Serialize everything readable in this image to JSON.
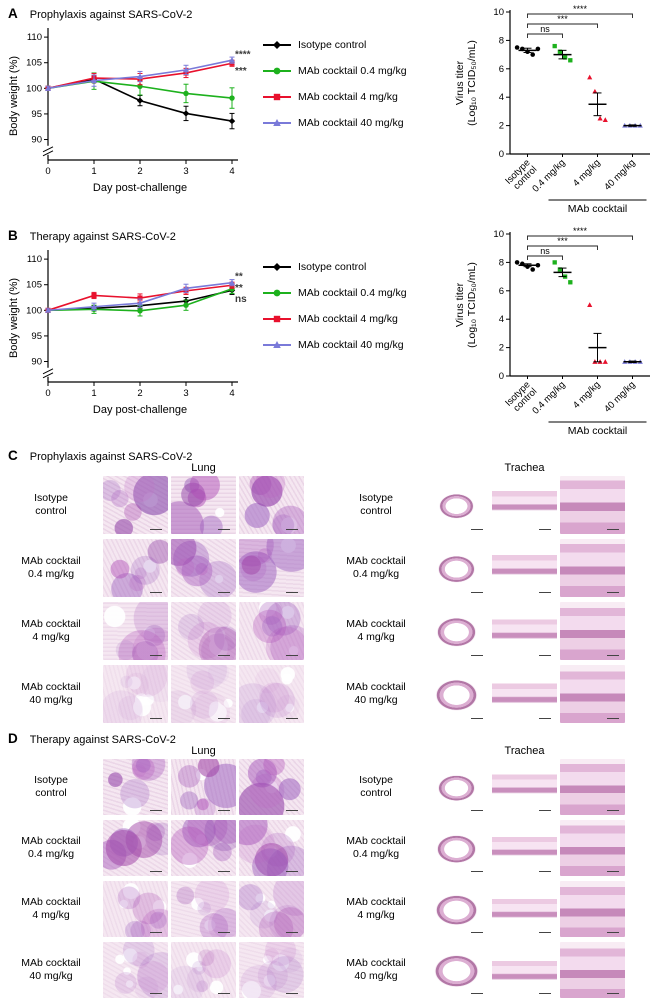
{
  "panels": {
    "A": {
      "label": "A",
      "title": "Prophylaxis against SARS-CoV-2"
    },
    "B": {
      "label": "B",
      "title": "Therapy against SARS-CoV-2"
    },
    "C": {
      "label": "C",
      "title": "Prophylaxis against SARS-CoV-2",
      "organs": [
        "Lung",
        "Trachea"
      ],
      "row_labels": [
        "Isotype\ncontrol",
        "MAb cocktail\n0.4 mg/kg",
        "MAb cocktail\n4 mg/kg",
        "MAb cocktail\n40 mg/kg"
      ]
    },
    "D": {
      "label": "D",
      "title": "Therapy against SARS-CoV-2",
      "organs": [
        "Lung",
        "Trachea"
      ],
      "row_labels": [
        "Isotype\ncontrol",
        "MAb cocktail\n0.4 mg/kg",
        "MAb cocktail\n4 mg/kg",
        "MAb cocktail\n40 mg/kg"
      ]
    }
  },
  "chart_data": [
    {
      "id": "line-A",
      "panel": "A",
      "type": "line",
      "title": "Prophylaxis against SARS-CoV-2",
      "xlabel": "Day post-challenge",
      "ylabel": "Body weight (%)",
      "x": [
        0,
        1,
        2,
        3,
        4
      ],
      "xticks": [
        0,
        1,
        2,
        3,
        4
      ],
      "ylim": [
        86,
        111
      ],
      "yticks": [
        90,
        95,
        100,
        105,
        110
      ],
      "series": [
        {
          "name": "Isotype control",
          "color": "#000000",
          "marker": "diamond",
          "values": [
            100,
            101.8,
            97.6,
            95.1,
            93.6
          ],
          "err": [
            0.4,
            0.6,
            1.0,
            1.4,
            1.5
          ]
        },
        {
          "name": "MAb cocktail 0.4 mg/kg",
          "color": "#1db11d",
          "marker": "circle",
          "values": [
            100,
            101.4,
            100.4,
            99.0,
            98.1
          ],
          "err": [
            0.4,
            1.6,
            1.7,
            1.8,
            2.0
          ]
        },
        {
          "name": "MAb cocktail 4 mg/kg",
          "color": "#e8112d",
          "marker": "square",
          "values": [
            100,
            102.0,
            101.8,
            103.0,
            104.9
          ],
          "err": [
            0.4,
            0.9,
            1.1,
            0.9,
            0.6
          ]
        },
        {
          "name": "MAb cocktail 40 mg/kg",
          "color": "#7a7ad9",
          "marker": "triangle",
          "values": [
            100,
            101.5,
            102.3,
            103.6,
            105.5
          ],
          "err": [
            0.4,
            1.1,
            1.0,
            0.9,
            0.6
          ]
        }
      ],
      "annotations": [
        {
          "text": "****",
          "y": 106.6
        },
        {
          "text": "***",
          "y": 103.4
        }
      ]
    },
    {
      "id": "scatter-A",
      "panel": "A",
      "type": "scatter",
      "ylabel_line1": "Virus titer",
      "ylabel_line2": "(Log₁₀ TCID₅₀/mL)",
      "ylim": [
        0,
        10
      ],
      "yticks": [
        0,
        2,
        4,
        6,
        8,
        10
      ],
      "groups": [
        {
          "label": "Isotype\ncontrol",
          "color": "#000000",
          "marker": "circle",
          "points": [
            7.5,
            7.4,
            7.2,
            7.0,
            7.4
          ],
          "mean": 7.3,
          "sem": 0.15
        },
        {
          "label": "0.4 mg/kg",
          "color": "#1db11d",
          "marker": "square",
          "points": [
            7.6,
            7.2,
            6.8,
            6.6
          ],
          "mean": 7.0,
          "sem": 0.3
        },
        {
          "label": "4 mg/kg",
          "color": "#e8112d",
          "marker": "triangle",
          "points": [
            5.4,
            4.4,
            2.5,
            2.4
          ],
          "mean": 3.5,
          "sem": 0.8
        },
        {
          "label": "40 mg/kg",
          "color": "#7a7ad9",
          "marker": "triangle",
          "points": [
            2.0,
            2.0,
            2.0,
            2.0
          ],
          "mean": 2.0,
          "sem": 0.05
        }
      ],
      "group_axis_label": "MAb cocktail",
      "significance": [
        {
          "from": 0,
          "to": 1,
          "label": "ns"
        },
        {
          "from": 0,
          "to": 2,
          "label": "***"
        },
        {
          "from": 0,
          "to": 3,
          "label": "****"
        }
      ]
    },
    {
      "id": "line-B",
      "panel": "B",
      "type": "line",
      "title": "Therapy against SARS-CoV-2",
      "xlabel": "Day post-challenge",
      "ylabel": "Body weight (%)",
      "x": [
        0,
        1,
        2,
        3,
        4
      ],
      "xticks": [
        0,
        1,
        2,
        3,
        4
      ],
      "ylim": [
        86,
        111
      ],
      "yticks": [
        90,
        95,
        100,
        105,
        110
      ],
      "series": [
        {
          "name": "Isotype control",
          "color": "#000000",
          "marker": "diamond",
          "values": [
            100,
            100.4,
            100.9,
            101.8,
            103.9
          ],
          "err": [
            0.3,
            0.5,
            0.6,
            0.7,
            0.8
          ]
        },
        {
          "name": "MAb cocktail 0.4 mg/kg",
          "color": "#1db11d",
          "marker": "circle",
          "values": [
            100,
            100.2,
            99.9,
            101.0,
            104.2
          ],
          "err": [
            0.3,
            0.8,
            1.0,
            1.0,
            0.9
          ]
        },
        {
          "name": "MAb cocktail 4 mg/kg",
          "color": "#e8112d",
          "marker": "square",
          "values": [
            100,
            102.9,
            102.4,
            103.8,
            104.9
          ],
          "err": [
            0.3,
            0.6,
            0.8,
            0.7,
            0.6
          ]
        },
        {
          "name": "MAb cocktail 40 mg/kg",
          "color": "#7a7ad9",
          "marker": "triangle",
          "values": [
            100,
            100.7,
            101.4,
            104.3,
            105.4
          ],
          "err": [
            0.3,
            0.7,
            0.8,
            0.8,
            0.6
          ]
        }
      ],
      "annotations": [
        {
          "text": "**",
          "y": 106.6
        },
        {
          "text": "**",
          "y": 104.4
        },
        {
          "text": "ns",
          "y": 102.2
        }
      ]
    },
    {
      "id": "scatter-B",
      "panel": "B",
      "type": "scatter",
      "ylabel_line1": "Virus titer",
      "ylabel_line2": "(Log₁₀ TCID₅₀/mL)",
      "ylim": [
        0,
        10
      ],
      "yticks": [
        0,
        2,
        4,
        6,
        8,
        10
      ],
      "groups": [
        {
          "label": "Isotype\ncontrol",
          "color": "#000000",
          "marker": "circle",
          "points": [
            8.0,
            7.9,
            7.7,
            7.5,
            7.8
          ],
          "mean": 7.8,
          "sem": 0.1
        },
        {
          "label": "0.4 mg/kg",
          "color": "#1db11d",
          "marker": "square",
          "points": [
            8.0,
            7.5,
            7.0,
            6.6
          ],
          "mean": 7.3,
          "sem": 0.3
        },
        {
          "label": "4 mg/kg",
          "color": "#e8112d",
          "marker": "triangle",
          "points": [
            5.0,
            1.0,
            1.0,
            1.0
          ],
          "mean": 2.0,
          "sem": 1.0
        },
        {
          "label": "40 mg/kg",
          "color": "#7a7ad9",
          "marker": "triangle",
          "points": [
            1.0,
            1.0,
            1.0,
            1.0
          ],
          "mean": 1.0,
          "sem": 0.05
        }
      ],
      "group_axis_label": "MAb cocktail",
      "significance": [
        {
          "from": 0,
          "to": 1,
          "label": "ns"
        },
        {
          "from": 0,
          "to": 2,
          "label": "***"
        },
        {
          "from": 0,
          "to": 3,
          "label": "****"
        }
      ]
    }
  ]
}
